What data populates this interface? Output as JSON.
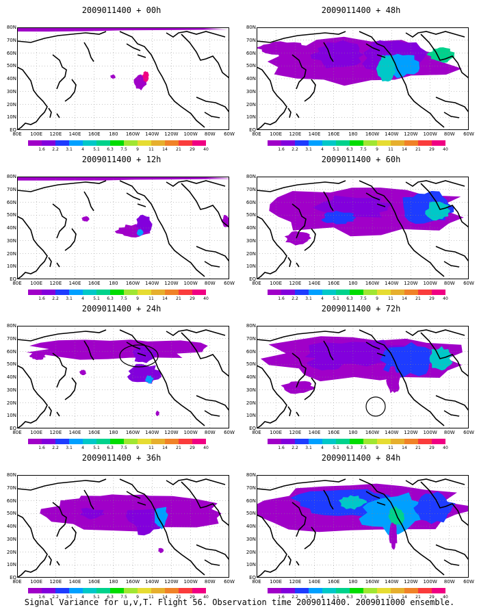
{
  "colorbar": {
    "labels": [
      "1.6",
      "2.2",
      "3.1",
      "4",
      "5.1",
      "6.3",
      "7.5",
      "9",
      "11",
      "14",
      "21",
      "29",
      "40"
    ],
    "colors": [
      "#a000c8",
      "#8200dc",
      "#1e3cff",
      "#00a0ff",
      "#00c8c8",
      "#00d28c",
      "#00dc00",
      "#a0e632",
      "#e6dc32",
      "#e6af2d",
      "#f08228",
      "#fa3c3c",
      "#f00082"
    ]
  },
  "axes": {
    "lat_labels": [
      "80N",
      "70N",
      "60N",
      "50N",
      "40N",
      "30N",
      "20N",
      "10N",
      "EQ"
    ],
    "lon_labels": [
      "80E",
      "100E",
      "120E",
      "140E",
      "160E",
      "180",
      "160W",
      "140W",
      "120W",
      "100W",
      "80W",
      "60W"
    ]
  },
  "panels": [
    {
      "id": "p00",
      "title": "2009011400 + 00h"
    },
    {
      "id": "p48",
      "title": "2009011400 + 48h"
    },
    {
      "id": "p12",
      "title": "2009011400 + 12h"
    },
    {
      "id": "p60",
      "title": "2009011400 + 60h"
    },
    {
      "id": "p24",
      "title": "2009011400 + 24h"
    },
    {
      "id": "p72",
      "title": "2009011400 + 72h"
    },
    {
      "id": "p36",
      "title": "2009011400 + 36h"
    },
    {
      "id": "p84",
      "title": "2009011400 + 84h"
    }
  ],
  "caption": "Signal Variance for u,v,T. Flight 56. Observation time 2009011400. 2009011000 ensemble."
}
